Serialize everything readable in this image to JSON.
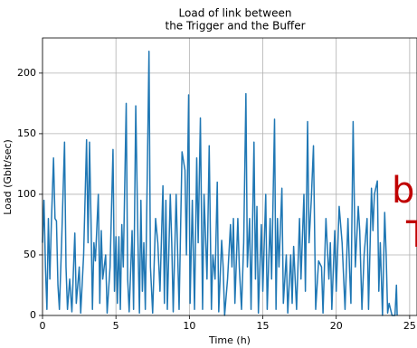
{
  "chart_data": {
    "type": "line",
    "title": [
      "Load of link between",
      "the Trigger and the Buffer"
    ],
    "xlabel": "Time (h)",
    "ylabel": "Load (Gbit/sec)",
    "x": [
      0,
      0.1,
      0.2,
      0.3,
      0.4,
      0.5,
      0.6,
      0.75,
      0.85,
      0.95,
      1.05,
      1.15,
      1.3,
      1.5,
      1.6,
      1.7,
      1.85,
      2.0,
      2.2,
      2.3,
      2.5,
      2.6,
      2.8,
      3.0,
      3.1,
      3.2,
      3.3,
      3.4,
      3.5,
      3.6,
      3.8,
      3.9,
      4.0,
      4.1,
      4.3,
      4.4,
      4.6,
      4.8,
      4.9,
      5.0,
      5.1,
      5.2,
      5.3,
      5.4,
      5.5,
      5.7,
      5.8,
      5.9,
      6.1,
      6.2,
      6.35,
      6.5,
      6.6,
      6.7,
      6.8,
      6.9,
      7.0,
      7.15,
      7.25,
      7.35,
      7.5,
      7.7,
      7.85,
      8.0,
      8.2,
      8.3,
      8.4,
      8.5,
      8.7,
      8.8,
      8.9,
      9.1,
      9.3,
      9.5,
      9.7,
      9.8,
      9.95,
      10.05,
      10.2,
      10.35,
      10.5,
      10.6,
      10.75,
      10.9,
      11.0,
      11.2,
      11.35,
      11.5,
      11.6,
      11.75,
      11.9,
      12.0,
      12.2,
      12.3,
      12.4,
      12.6,
      12.8,
      12.9,
      13.0,
      13.1,
      13.3,
      13.4,
      13.55,
      13.7,
      13.85,
      13.95,
      14.1,
      14.2,
      14.4,
      14.5,
      14.6,
      14.7,
      14.9,
      15.0,
      15.2,
      15.3,
      15.5,
      15.6,
      15.8,
      15.9,
      16.0,
      16.1,
      16.3,
      16.4,
      16.6,
      16.7,
      16.9,
      17.0,
      17.1,
      17.3,
      17.5,
      17.6,
      17.8,
      17.9,
      18.05,
      18.15,
      18.3,
      18.45,
      18.6,
      18.8,
      19.0,
      19.1,
      19.3,
      19.5,
      19.6,
      19.7,
      19.9,
      20.0,
      20.2,
      20.4,
      20.6,
      20.8,
      20.9,
      21.0,
      21.15,
      21.3,
      21.5,
      21.6,
      21.75,
      21.9,
      22.1,
      22.2,
      22.4,
      22.5,
      22.6,
      22.8,
      22.9,
      23.0,
      23.15,
      23.3,
      23.4,
      23.5,
      23.6,
      23.8,
      24.0,
      24.1,
      24.15
    ],
    "values": [
      60,
      95,
      40,
      5,
      80,
      30,
      75,
      130,
      80,
      78,
      25,
      5,
      60,
      143,
      40,
      5,
      30,
      3,
      68,
      10,
      40,
      2,
      50,
      145,
      60,
      143,
      80,
      5,
      60,
      45,
      100,
      10,
      70,
      30,
      50,
      2,
      40,
      137,
      20,
      65,
      10,
      65,
      5,
      75,
      40,
      175,
      30,
      3,
      70,
      5,
      173,
      60,
      2,
      95,
      20,
      60,
      5,
      130,
      218,
      40,
      2,
      80,
      60,
      20,
      107,
      10,
      95,
      5,
      100,
      60,
      3,
      100,
      5,
      135,
      120,
      50,
      182,
      10,
      95,
      5,
      130,
      60,
      163,
      5,
      100,
      30,
      140,
      5,
      50,
      30,
      110,
      3,
      62,
      40,
      0,
      30,
      75,
      40,
      80,
      10,
      80,
      40,
      5,
      60,
      183,
      40,
      80,
      5,
      143,
      30,
      90,
      2,
      75,
      20,
      100,
      5,
      80,
      30,
      162,
      5,
      80,
      40,
      105,
      10,
      50,
      2,
      50,
      10,
      57,
      5,
      80,
      30,
      100,
      20,
      160,
      60,
      95,
      140,
      5,
      45,
      40,
      2,
      80,
      30,
      60,
      5,
      70,
      20,
      90,
      60,
      5,
      80,
      40,
      10,
      160,
      40,
      90,
      70,
      5,
      50,
      80,
      5,
      105,
      70,
      100,
      111,
      20,
      60,
      0,
      85,
      50,
      2,
      10,
      0,
      0,
      25,
      0
    ],
    "color": "#1f77b4",
    "xlim": [
      0,
      25.5
    ],
    "ylim": [
      0,
      229
    ],
    "xticks": [
      0,
      5,
      10,
      15,
      20,
      25
    ],
    "yticks": [
      0,
      50,
      100,
      150,
      200
    ],
    "grid": true,
    "annotations": [
      "b",
      "T"
    ]
  }
}
